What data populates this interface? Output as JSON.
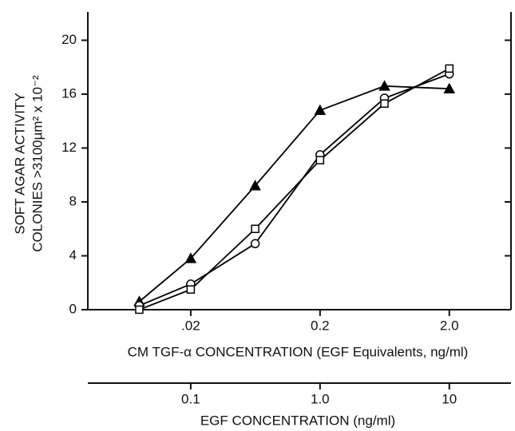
{
  "chart_data": {
    "type": "line",
    "ylabel": [
      "SOFT AGAR ACTIVITY",
      "COLONIES >3100µm² x 10⁻²"
    ],
    "xlabel": "CM TGF-α CONCENTRATION (EGF Equivalents, ng/ml)",
    "x2label": "EGF CONCENTRATION (ng/ml)",
    "xscale": "log",
    "x": [
      0.008,
      0.02,
      0.063,
      0.2,
      0.63,
      2.0
    ],
    "series": [
      {
        "marker": "triangle",
        "color": "#000000",
        "values": [
          0.6,
          3.8,
          9.2,
          14.8,
          16.6,
          16.4
        ]
      },
      {
        "marker": "circle",
        "color": "#000000",
        "values": [
          0.3,
          1.9,
          4.9,
          11.5,
          15.7,
          17.5
        ]
      },
      {
        "marker": "square",
        "color": "#000000",
        "values": [
          0.0,
          1.5,
          6.0,
          11.1,
          15.3,
          17.9
        ]
      }
    ],
    "xlim": [
      0.0032,
      6
    ],
    "xticks": [
      {
        "value": 0.02,
        "label": ".02"
      },
      0.2,
      {
        "value": 2,
        "label": "2.0"
      }
    ],
    "x2lim": [
      0.016,
      30
    ],
    "x2ticks": [
      0.1,
      {
        "value": 1,
        "label": "1.0"
      },
      10
    ],
    "ylim": [
      0,
      22.1
    ],
    "yticks": [
      0,
      4,
      8,
      12,
      16,
      20
    ]
  }
}
